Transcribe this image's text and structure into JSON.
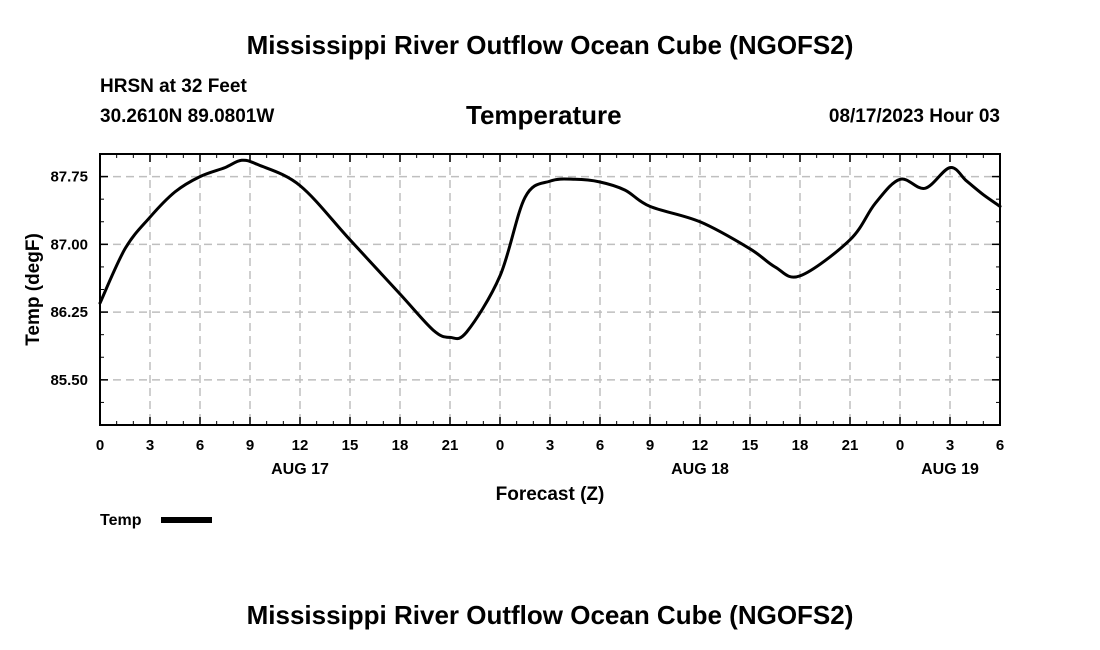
{
  "main_title": "Mississippi River Outflow Ocean Cube (NGOFS2)",
  "bottom_title": "Mississippi River Outflow Ocean Cube (NGOFS2)",
  "station": {
    "name_depth": "HRSN at 32 Feet",
    "coords": "30.2610N  89.0801W"
  },
  "panel_title": "Temperature",
  "datetime": "08/17/2023 Hour 03",
  "chart_data": {
    "type": "line",
    "title": "Temperature",
    "xlabel": "Forecast (Z)",
    "ylabel": "Temp (degF)",
    "xlim": [
      0,
      54
    ],
    "ylim": [
      85.0,
      88.0
    ],
    "grid": true,
    "x_ticks": [
      0,
      3,
      6,
      9,
      12,
      15,
      18,
      21,
      24,
      27,
      30,
      33,
      36,
      39,
      42,
      45,
      48,
      51,
      54
    ],
    "x_tick_labels": [
      "0",
      "3",
      "6",
      "9",
      "12",
      "15",
      "18",
      "21",
      "0",
      "3",
      "6",
      "9",
      "12",
      "15",
      "18",
      "21",
      "0",
      "3",
      "6"
    ],
    "day_labels": [
      {
        "x": 12,
        "label": "AUG 17"
      },
      {
        "x": 36,
        "label": "AUG 18"
      },
      {
        "x": 51,
        "label": "AUG 19"
      }
    ],
    "y_ticks": [
      85.5,
      86.25,
      87.0,
      87.75
    ],
    "y_tick_labels": [
      "85.50",
      "86.25",
      "87.00",
      "87.75"
    ],
    "legend": {
      "position": "bottom-left",
      "label": "Temp"
    },
    "series": [
      {
        "name": "Temp",
        "color": "#000000",
        "x": [
          0,
          1.5,
          3,
          4.5,
          6,
          7.5,
          8.5,
          9.5,
          12,
          15,
          18,
          20,
          21,
          22,
          24,
          25.5,
          27,
          28.5,
          30,
          31.5,
          33,
          36,
          39,
          40.5,
          42,
          45,
          46.5,
          48,
          49.5,
          51,
          52,
          53,
          54
        ],
        "values": [
          86.35,
          86.95,
          87.3,
          87.58,
          87.75,
          87.85,
          87.93,
          87.88,
          87.65,
          87.05,
          86.45,
          86.05,
          85.97,
          86.03,
          86.65,
          87.52,
          87.7,
          87.72,
          87.69,
          87.6,
          87.42,
          87.25,
          86.95,
          86.75,
          86.65,
          87.05,
          87.45,
          87.72,
          87.62,
          87.85,
          87.7,
          87.55,
          87.42
        ]
      }
    ]
  }
}
